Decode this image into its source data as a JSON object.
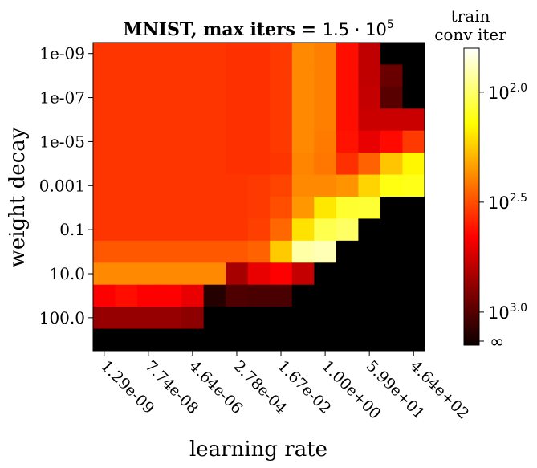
{
  "chart_data": {
    "type": "heatmap",
    "title_text": "MNIST, max iters = ",
    "title_math": "1.5 · 10",
    "title_exp": "5",
    "xlabel": "learning rate",
    "ylabel": "weight decay",
    "x_tick_labels": [
      "1.29e-09",
      "7.74e-08",
      "4.64e-06",
      "2.78e-04",
      "1.67e-02",
      "1.00e+00",
      "5.99e+01",
      "4.64e+02"
    ],
    "x_tick_columns": [
      0,
      2,
      4,
      6,
      8,
      10,
      12,
      14
    ],
    "y_tick_labels": [
      "1e-09",
      "1e-07",
      "1e-05",
      "0.001",
      "0.1",
      "10.0",
      "100.0"
    ],
    "y_tick_rows": [
      0,
      2,
      4,
      6,
      8,
      10,
      12
    ],
    "colorbar": {
      "title_line1": "train",
      "title_line2": "conv iter",
      "colormap": "hot",
      "scale": "log",
      "ticks": [
        {
          "base": "10",
          "exp": "2.0",
          "value": 2.0
        },
        {
          "base": "10",
          "exp": "2.5",
          "value": 2.5
        },
        {
          "base": "10",
          "exp": "3.0",
          "value": 3.0
        }
      ],
      "inf_label": "∞",
      "range_log10": [
        1.8,
        3.15
      ]
    },
    "rows": 14,
    "cols": 15,
    "values_log10_iters": [
      [
        2.55,
        2.55,
        2.55,
        2.55,
        2.55,
        2.55,
        2.56,
        2.56,
        2.54,
        2.38,
        2.4,
        2.63,
        2.8,
        null,
        null
      ],
      [
        2.55,
        2.55,
        2.55,
        2.55,
        2.55,
        2.55,
        2.56,
        2.56,
        2.54,
        2.38,
        2.4,
        2.63,
        2.8,
        2.97,
        null
      ],
      [
        2.55,
        2.55,
        2.55,
        2.55,
        2.55,
        2.55,
        2.56,
        2.56,
        2.54,
        2.38,
        2.4,
        2.63,
        2.79,
        3.0,
        null
      ],
      [
        2.55,
        2.55,
        2.55,
        2.55,
        2.55,
        2.55,
        2.56,
        2.56,
        2.54,
        2.38,
        2.4,
        2.63,
        2.78,
        2.78,
        2.78
      ],
      [
        2.55,
        2.55,
        2.55,
        2.55,
        2.55,
        2.55,
        2.56,
        2.56,
        2.54,
        2.38,
        2.41,
        2.62,
        2.72,
        2.64,
        2.54
      ],
      [
        2.55,
        2.55,
        2.55,
        2.55,
        2.55,
        2.55,
        2.56,
        2.56,
        2.55,
        2.39,
        2.42,
        2.56,
        2.46,
        2.26,
        2.16
      ],
      [
        2.55,
        2.55,
        2.55,
        2.55,
        2.55,
        2.55,
        2.55,
        2.54,
        2.52,
        2.38,
        2.38,
        2.36,
        2.23,
        2.12,
        2.11
      ],
      [
        2.55,
        2.55,
        2.55,
        2.55,
        2.55,
        2.55,
        2.55,
        2.54,
        2.5,
        2.35,
        2.19,
        2.08,
        2.07,
        null,
        null
      ],
      [
        2.55,
        2.55,
        2.55,
        2.55,
        2.55,
        2.55,
        2.55,
        2.53,
        2.45,
        2.2,
        2.04,
        2.01,
        null,
        null,
        null
      ],
      [
        2.48,
        2.48,
        2.48,
        2.48,
        2.48,
        2.48,
        2.48,
        2.46,
        2.25,
        1.92,
        1.9,
        null,
        null,
        null,
        null
      ],
      [
        2.38,
        2.38,
        2.38,
        2.38,
        2.38,
        2.38,
        2.85,
        2.72,
        2.68,
        2.79,
        null,
        null,
        null,
        null,
        null
      ],
      [
        2.66,
        2.63,
        2.66,
        2.66,
        2.72,
        3.1,
        3.02,
        3.03,
        3.03,
        null,
        null,
        null,
        null,
        null,
        null
      ],
      [
        2.88,
        2.88,
        2.88,
        2.88,
        2.9,
        null,
        null,
        null,
        null,
        null,
        null,
        null,
        null,
        null,
        null
      ],
      [
        null,
        null,
        null,
        null,
        null,
        null,
        null,
        null,
        null,
        null,
        null,
        null,
        null,
        null,
        null
      ]
    ]
  }
}
